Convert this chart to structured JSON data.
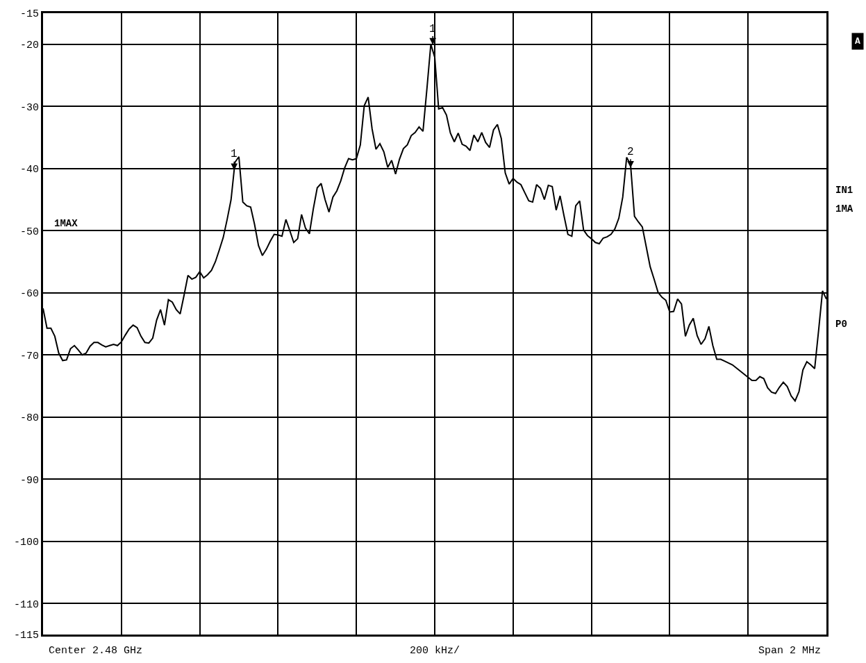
{
  "chart_data": {
    "type": "line",
    "categories": [
      null,
      null,
      null,
      null,
      null,
      null,
      null,
      null,
      null,
      null,
      null,
      null,
      null,
      null,
      null,
      null,
      null,
      null,
      null,
      null,
      null,
      null,
      null,
      null,
      null,
      null,
      null,
      null,
      null,
      null,
      null,
      null,
      null,
      null,
      null,
      null,
      null,
      null,
      null,
      null,
      null,
      null,
      null,
      null,
      null,
      null,
      null,
      null,
      null,
      null,
      null,
      null,
      null,
      null,
      null,
      null,
      null,
      null,
      null,
      null,
      null,
      null,
      null,
      null,
      null,
      null,
      null,
      null,
      null,
      null,
      null,
      null,
      null,
      null,
      null,
      null,
      null,
      null,
      null,
      null,
      null,
      null,
      null,
      null,
      null,
      null,
      null,
      null,
      null,
      null,
      null,
      null,
      null,
      null,
      null,
      null,
      null,
      null,
      null,
      null,
      null,
      null,
      null,
      null,
      null,
      null,
      null,
      null,
      null,
      null,
      null,
      null,
      null,
      null,
      null,
      null,
      null,
      null,
      null,
      null,
      null,
      null,
      null,
      null,
      null,
      null,
      null,
      null,
      null,
      null,
      null,
      null,
      null,
      null,
      null,
      null,
      null,
      null,
      null,
      null,
      null,
      null,
      null,
      null,
      null,
      null,
      null,
      null,
      null,
      null,
      null,
      null,
      null,
      null,
      null,
      null,
      null,
      null,
      null,
      null,
      null,
      null,
      null,
      null,
      null,
      null,
      null,
      null,
      null,
      null,
      null,
      null,
      null,
      null,
      null,
      null,
      null,
      null,
      null,
      null,
      null,
      null,
      null,
      null,
      null,
      null,
      null,
      null,
      null,
      null,
      null,
      null,
      null,
      null,
      null,
      null,
      null,
      null,
      null,
      null,
      null
    ],
    "series": [
      {
        "color": "#000000",
        "values": [
          -62.5,
          -65.7,
          -65.7,
          -67.0,
          -69.7,
          -70.9,
          -70.8,
          -69.0,
          -68.5,
          -69.2,
          -70.0,
          -69.7,
          -68.6,
          -68.0,
          -68.0,
          -68.4,
          -68.7,
          -68.5,
          -68.3,
          -68.5,
          -67.9,
          -66.8,
          -65.8,
          -65.2,
          -65.6,
          -67.0,
          -68.0,
          -68.1,
          -67.3,
          -64.4,
          -62.7,
          -65.2,
          -61.1,
          -61.5,
          -62.7,
          -63.4,
          -60.4,
          -57.2,
          -57.8,
          -57.5,
          -56.6,
          -57.6,
          -57.1,
          -56.4,
          -55.0,
          -53.1,
          -51.1,
          -48.2,
          -45.0,
          -39.0,
          -38.1,
          -45.4,
          -46.0,
          -46.2,
          -49.0,
          -52.4,
          -54.0,
          -53.0,
          -51.7,
          -50.6,
          -50.7,
          -50.9,
          -48.2,
          -50.0,
          -51.9,
          -51.3,
          -47.4,
          -49.6,
          -50.5,
          -46.5,
          -43.1,
          -42.4,
          -45.0,
          -47.0,
          -44.6,
          -43.6,
          -42.0,
          -39.9,
          -38.4,
          -38.6,
          -38.4,
          -36.2,
          -29.9,
          -28.5,
          -33.6,
          -36.9,
          -36.0,
          -37.3,
          -39.8,
          -38.7,
          -40.9,
          -38.5,
          -36.8,
          -36.2,
          -34.7,
          -34.2,
          -33.3,
          -34.0,
          -27.2,
          -20.0,
          -22.1,
          -30.4,
          -30.2,
          -31.4,
          -34.3,
          -35.7,
          -34.3,
          -36.1,
          -36.4,
          -37.1,
          -34.6,
          -35.7,
          -34.2,
          -35.8,
          -36.6,
          -33.8,
          -32.9,
          -35.2,
          -40.7,
          -42.5,
          -41.6,
          -42.2,
          -42.6,
          -43.9,
          -45.2,
          -45.4,
          -42.6,
          -43.2,
          -45.0,
          -42.7,
          -42.9,
          -46.7,
          -44.4,
          -47.6,
          -50.6,
          -50.9,
          -46.0,
          -45.2,
          -49.9,
          -50.8,
          -51.3,
          -51.9,
          -52.1,
          -51.2,
          -51.0,
          -50.6,
          -49.7,
          -48.0,
          -44.6,
          -38.2,
          -39.4,
          -47.7,
          -48.6,
          -49.4,
          -52.6,
          -55.8,
          -57.8,
          -59.9,
          -60.7,
          -61.2,
          -63.1,
          -63.0,
          -61.0,
          -61.8,
          -67.0,
          -65.2,
          -64.1,
          -66.9,
          -68.3,
          -67.4,
          -65.4,
          -68.5,
          -70.7,
          -70.7,
          -71.0,
          -71.3,
          -71.6,
          -72.1,
          -72.6,
          -73.1,
          -73.6,
          -74.1,
          -74.1,
          -73.5,
          -73.8,
          -75.3,
          -76.0,
          -76.2,
          -75.2,
          -74.4,
          -75.1,
          -76.6,
          -77.4,
          -75.9,
          -72.4,
          -71.1,
          -71.6,
          -72.2,
          -66.1,
          -59.7,
          -61.0
        ]
      }
    ],
    "ylim": [
      -115,
      -15
    ],
    "yticks": [
      -115,
      -110,
      -100,
      -90,
      -80,
      -70,
      -60,
      -50,
      -40,
      -30,
      -20,
      -15
    ],
    "grid": true,
    "marker": "none",
    "line_style": "solid",
    "annotations": [
      "1MAX",
      "A",
      "IN1",
      "1MA",
      "P0",
      "Center 2.48 GHz",
      "200 kHz/",
      "Span 2 MHz",
      "1",
      "1",
      "2"
    ]
  }
}
